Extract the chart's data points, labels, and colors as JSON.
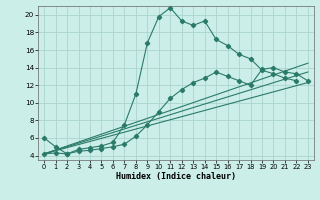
{
  "xlabel": "Humidex (Indice chaleur)",
  "bg_color": "#cceee8",
  "line_color": "#2a7a6a",
  "grid_color": "#aad4cc",
  "xlim": [
    -0.5,
    23.5
  ],
  "ylim": [
    3.5,
    21.0
  ],
  "xticks": [
    0,
    1,
    2,
    3,
    4,
    5,
    6,
    7,
    8,
    9,
    10,
    11,
    12,
    13,
    14,
    15,
    16,
    17,
    18,
    19,
    20,
    21,
    22,
    23
  ],
  "yticks": [
    4,
    6,
    8,
    10,
    12,
    14,
    16,
    18,
    20
  ],
  "line1_x": [
    0,
    1,
    2,
    3,
    4,
    5,
    6,
    7,
    8,
    9,
    10,
    11,
    12,
    13,
    14,
    15,
    16,
    17,
    18,
    19,
    20,
    21,
    22
  ],
  "line1_y": [
    6.0,
    5.0,
    4.2,
    4.7,
    4.9,
    5.1,
    5.5,
    7.5,
    11.0,
    16.8,
    19.8,
    20.8,
    19.3,
    18.8,
    19.3,
    17.2,
    16.5,
    15.5,
    15.0,
    13.7,
    13.3,
    12.8,
    12.5
  ],
  "line2_x": [
    0,
    1,
    2,
    3,
    4,
    5,
    6,
    7,
    8,
    9,
    10,
    11,
    12,
    13,
    14,
    15,
    16,
    17,
    18,
    19,
    20,
    21,
    22,
    23
  ],
  "line2_y": [
    4.2,
    4.3,
    4.2,
    4.5,
    4.6,
    4.8,
    5.0,
    5.3,
    6.2,
    7.5,
    9.0,
    10.5,
    11.5,
    12.3,
    12.8,
    13.5,
    13.0,
    12.5,
    12.0,
    13.8,
    14.0,
    13.5,
    13.3,
    12.5
  ],
  "line3_x": [
    0,
    23
  ],
  "line3_y": [
    4.2,
    12.3
  ],
  "line4_x": [
    0,
    23
  ],
  "line4_y": [
    4.2,
    13.5
  ],
  "line5_x": [
    0,
    23
  ],
  "line5_y": [
    4.2,
    14.5
  ]
}
